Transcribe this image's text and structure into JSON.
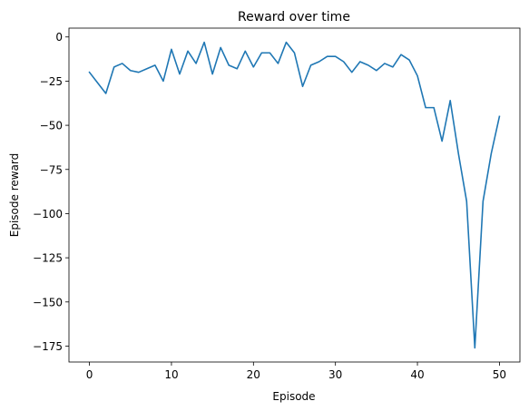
{
  "chart_data": {
    "type": "line",
    "title": "Reward over time",
    "xlabel": "Episode",
    "ylabel": "Episode reward",
    "xlim": [
      -2.5,
      52.5
    ],
    "ylim": [
      -184,
      5
    ],
    "xticks": [
      0,
      10,
      20,
      30,
      40,
      50
    ],
    "yticks": [
      0,
      -25,
      -50,
      -75,
      -100,
      -125,
      -150,
      -175
    ],
    "xtick_labels": [
      "0",
      "10",
      "20",
      "30",
      "40",
      "50"
    ],
    "ytick_labels": [
      "0",
      "−25",
      "−50",
      "−75",
      "−100",
      "−125",
      "−150",
      "−175"
    ],
    "grid": false,
    "legend": "none",
    "line_color": "#1f77b4",
    "series": [
      {
        "x": [
          0,
          1,
          2,
          3,
          4,
          5,
          6,
          7,
          8,
          9,
          10,
          11,
          12,
          13,
          14,
          15,
          16,
          17,
          18,
          19,
          20,
          21,
          22,
          23,
          24,
          25,
          26,
          27,
          28,
          29,
          30,
          31,
          32,
          33,
          34,
          35,
          36,
          37,
          38,
          39,
          40,
          41,
          42,
          43,
          44,
          45,
          46,
          47,
          48,
          49,
          50
        ],
        "values": [
          -20,
          -26,
          -32,
          -17,
          -15,
          -19,
          -20,
          -18,
          -16,
          -25,
          -7,
          -21,
          -8,
          -15,
          -3,
          -21,
          -6,
          -16,
          -18,
          -8,
          -17,
          -9,
          -9,
          -15,
          -3,
          -9,
          -28,
          -16,
          -14,
          -11,
          -11,
          -14,
          -20,
          -14,
          -16,
          -19,
          -15,
          -17,
          -10,
          -13,
          -22,
          -40,
          -40,
          -59,
          -36,
          -66,
          -93,
          -176,
          -93,
          -66,
          -45
        ]
      }
    ]
  }
}
